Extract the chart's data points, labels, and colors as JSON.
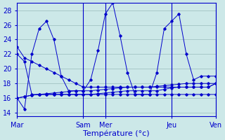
{
  "xlabel": "Température (°c)",
  "ylim": [
    13.5,
    29
  ],
  "yticks": [
    14,
    16,
    18,
    20,
    22,
    24,
    26,
    28
  ],
  "bg_color": "#cce8e8",
  "line_color": "#0000cc",
  "grid_color": "#99bbbb",
  "tick_label_color": "#0000cc",
  "xlabel_color": "#0000cc",
  "x_tick_positions": [
    0,
    9,
    12,
    21,
    27
  ],
  "x_tick_labels": [
    "Mar",
    "Sam",
    "Mer",
    "Jeu",
    "Ven"
  ],
  "vline_positions": [
    9,
    12,
    21,
    27
  ],
  "series": [
    [
      23.0,
      21.5,
      21.0,
      20.5,
      20.0,
      19.5,
      19.0,
      18.5,
      18.0,
      17.5,
      17.5,
      17.5,
      17.5,
      17.5,
      17.5,
      17.5,
      17.5,
      17.5,
      17.5,
      17.5,
      17.5,
      17.5,
      17.5,
      17.5,
      17.5,
      17.5,
      17.5,
      18.0
    ],
    [
      22.0,
      21.0,
      16.5,
      16.5,
      16.5,
      16.5,
      16.5,
      16.5,
      16.5,
      16.5,
      16.5,
      16.5,
      16.5,
      16.5,
      16.5,
      16.5,
      16.5,
      16.5,
      16.5,
      16.5,
      16.5,
      16.5,
      16.5,
      16.5,
      16.5,
      16.5,
      16.5,
      16.5
    ],
    [
      16.0,
      16.2,
      16.4,
      16.5,
      16.5,
      16.5,
      16.5,
      16.5,
      16.5,
      16.5,
      16.5,
      16.6,
      16.7,
      16.8,
      16.9,
      17.0,
      17.0,
      17.0,
      17.0,
      17.0,
      17.2,
      17.4,
      17.5,
      17.5,
      17.5,
      17.5,
      17.5,
      18.0
    ],
    [
      16.0,
      14.5,
      22.0,
      25.5,
      26.5,
      24.0,
      19.0,
      17.0,
      17.0,
      17.0,
      18.5,
      22.5,
      27.5,
      29.0,
      24.5,
      19.5,
      16.5,
      16.5,
      16.5,
      19.5,
      25.5,
      26.5,
      27.5,
      22.0,
      18.5,
      19.0,
      19.0,
      19.0
    ],
    [
      16.0,
      16.2,
      16.4,
      16.5,
      16.6,
      16.7,
      16.8,
      16.9,
      17.0,
      17.0,
      17.0,
      17.1,
      17.2,
      17.3,
      17.4,
      17.5,
      17.5,
      17.5,
      17.5,
      17.6,
      17.7,
      17.8,
      17.9,
      18.0,
      18.0,
      18.0,
      18.0,
      18.0
    ]
  ],
  "n_points": 28
}
